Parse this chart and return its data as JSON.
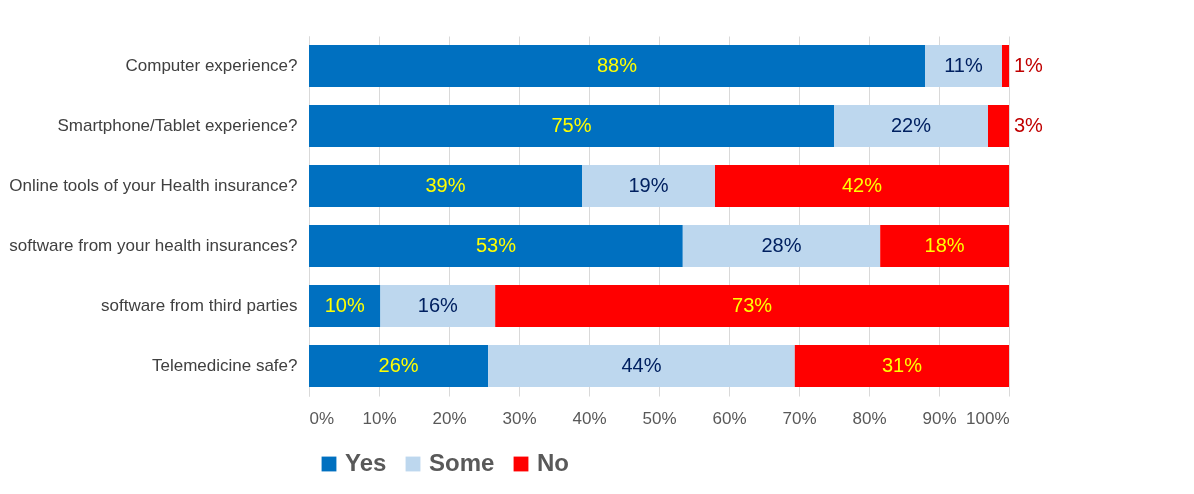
{
  "chart_data": {
    "type": "bar",
    "orientation": "horizontal",
    "stacked": true,
    "categories": [
      "Computer experience?",
      "Smartphone/Tablet experience?",
      "Online tools of your Health insurance?",
      "software from your health insurances?",
      "software from third parties",
      "Telemedicine safe?"
    ],
    "series": [
      {
        "name": "Yes",
        "color": "#0070c0",
        "values": [
          88,
          75,
          39,
          53.4,
          10.2,
          25.6
        ],
        "value_labels": [
          "88%",
          "75%",
          "39%",
          "53%",
          "10%",
          "26%"
        ]
      },
      {
        "name": "Some",
        "color": "#bdd7ee",
        "values": [
          11,
          22,
          19,
          28.2,
          16.4,
          43.8
        ],
        "value_labels": [
          "11%",
          "22%",
          "19%",
          "28%",
          "16%",
          "44%"
        ]
      },
      {
        "name": "No",
        "color": "#ff0000",
        "values": [
          1,
          3,
          42,
          18.4,
          73.4,
          30.6
        ],
        "value_labels": [
          "1%",
          "3%",
          "42%",
          "18%",
          "73%",
          "31%"
        ]
      }
    ],
    "xlim": [
      0,
      100
    ],
    "xticks": [
      {
        "value": 0,
        "label": "0%"
      },
      {
        "value": 10,
        "label": "10%"
      },
      {
        "value": 20,
        "label": "20%"
      },
      {
        "value": 30,
        "label": "30%"
      },
      {
        "value": 40,
        "label": "40%"
      },
      {
        "value": 50,
        "label": "50%"
      },
      {
        "value": 60,
        "label": "60%"
      },
      {
        "value": 70,
        "label": "70%"
      },
      {
        "value": 80,
        "label": "80%"
      },
      {
        "value": 90,
        "label": "90%"
      },
      {
        "value": 100,
        "label": "100%"
      }
    ],
    "grid": "x",
    "legend": "bottom"
  }
}
